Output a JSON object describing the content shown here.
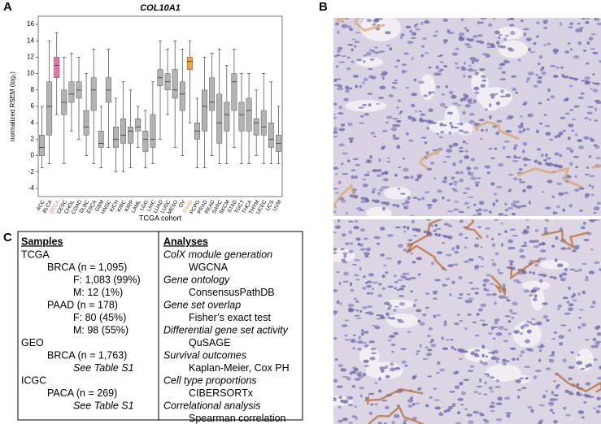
{
  "panel_labels": [
    "A",
    "B",
    "C"
  ],
  "chart_data": {
    "type": "box",
    "title": "COL10A1",
    "xlabel": "TCGA cohort",
    "ylabel": "normalized RSEM (log₂)",
    "categories": [
      "ACC",
      "BLCA",
      "BRCA",
      "CESC",
      "CHOL",
      "COAD",
      "DLBC",
      "ESCA",
      "GBM",
      "HNSC",
      "KICH",
      "KIRC",
      "KIRP",
      "LAML",
      "LGG",
      "LIHC",
      "LUAD",
      "LUSC",
      "MESO",
      "OV",
      "PAAD",
      "PCPG",
      "PRAD",
      "READ",
      "SARC",
      "SKCM",
      "STAD",
      "TGCT",
      "THCA",
      "THYM",
      "UCEC",
      "UCS",
      "UVM"
    ],
    "whislo": [
      -1.5,
      -1,
      5,
      -1,
      3,
      2,
      0,
      -1,
      -1.5,
      1,
      -2,
      -2,
      -1.5,
      1,
      -1.5,
      -1,
      2,
      5,
      1,
      0,
      4,
      -1.5,
      -1.5,
      0,
      -1,
      -1,
      1,
      -1,
      -1,
      0,
      -1,
      -1,
      -1
    ],
    "q1": [
      0,
      2.5,
      9.5,
      5,
      6.5,
      7,
      2.5,
      5.5,
      1,
      6.5,
      1,
      1.5,
      1.5,
      3,
      0.5,
      1,
      8.5,
      8,
      7,
      5.5,
      10.5,
      2,
      3,
      5.5,
      1.5,
      3,
      5.5,
      3,
      3,
      2.5,
      2.5,
      1,
      0.5
    ],
    "median": [
      1,
      6,
      11,
      6.5,
      7.5,
      8,
      3.5,
      8,
      1.5,
      8,
      2,
      2.5,
      3,
      3.5,
      2,
      2,
      9.5,
      9,
      8,
      7.5,
      11.5,
      3,
      6,
      6.5,
      4,
      5,
      9,
      5,
      5.5,
      4,
      3.5,
      2,
      1.5
    ],
    "q3": [
      2.5,
      9,
      12,
      8,
      9,
      9,
      5.5,
      9.5,
      3,
      9.5,
      3.5,
      4.5,
      3.5,
      4.5,
      3,
      5,
      10.5,
      10,
      10.5,
      9,
      12,
      4,
      8,
      9.5,
      7.5,
      6.5,
      10,
      6.5,
      7,
      4.5,
      5.5,
      4,
      2.5
    ],
    "whishi": [
      6,
      14,
      15,
      12,
      12.5,
      12,
      10,
      13,
      6,
      13,
      7,
      9,
      8,
      6,
      5.5,
      9,
      14,
      13,
      14,
      13,
      14,
      7,
      12,
      12.5,
      13,
      11,
      13,
      10,
      10,
      8,
      10,
      9,
      6
    ],
    "box_color": "#b3b3b3",
    "highlights": {
      "BRCA": "#ee6fa9",
      "PAAD": "#f5a533"
    },
    "ylim": [
      -5,
      17
    ],
    "yticks": [
      -4,
      -2,
      0,
      2,
      4,
      6,
      8,
      10,
      12,
      14,
      16
    ]
  },
  "table": {
    "headers": [
      "Samples",
      "Analyses"
    ],
    "samples": [
      {
        "source": "TCGA",
        "cohorts": [
          {
            "name": "BRCA (n = 1,095)",
            "details": [
              "F: 1,083 (99%)",
              "M: 12 (1%)"
            ]
          },
          {
            "name": "PAAD (n = 178)",
            "details": [
              "F: 80 (45%)",
              "M: 98 (55%)"
            ]
          }
        ]
      },
      {
        "source": "GEO",
        "cohorts": [
          {
            "name": "BRCA (n = 1,763)",
            "note": "See Table S1"
          }
        ]
      },
      {
        "source": "ICGC",
        "cohorts": [
          {
            "name": "PACA (n = 269)",
            "note": "See Table S1"
          }
        ]
      }
    ],
    "analyses": [
      {
        "category": "ColX module generation",
        "method": "WGCNA"
      },
      {
        "category": "Gene ontology",
        "method": "ConsensusPathDB"
      },
      {
        "category": "Gene set overlap",
        "method": "Fisher’s exact test"
      },
      {
        "category": "Differential gene set activity",
        "method": "QuSAGE"
      },
      {
        "category": "Survival outcomes",
        "method": "Kaplan-Meier, Cox PH"
      },
      {
        "category": "Cell type proportions",
        "method": "CIBERSORTx"
      },
      {
        "category": "Correlational analysis",
        "method": "Spearman correlation"
      }
    ]
  }
}
